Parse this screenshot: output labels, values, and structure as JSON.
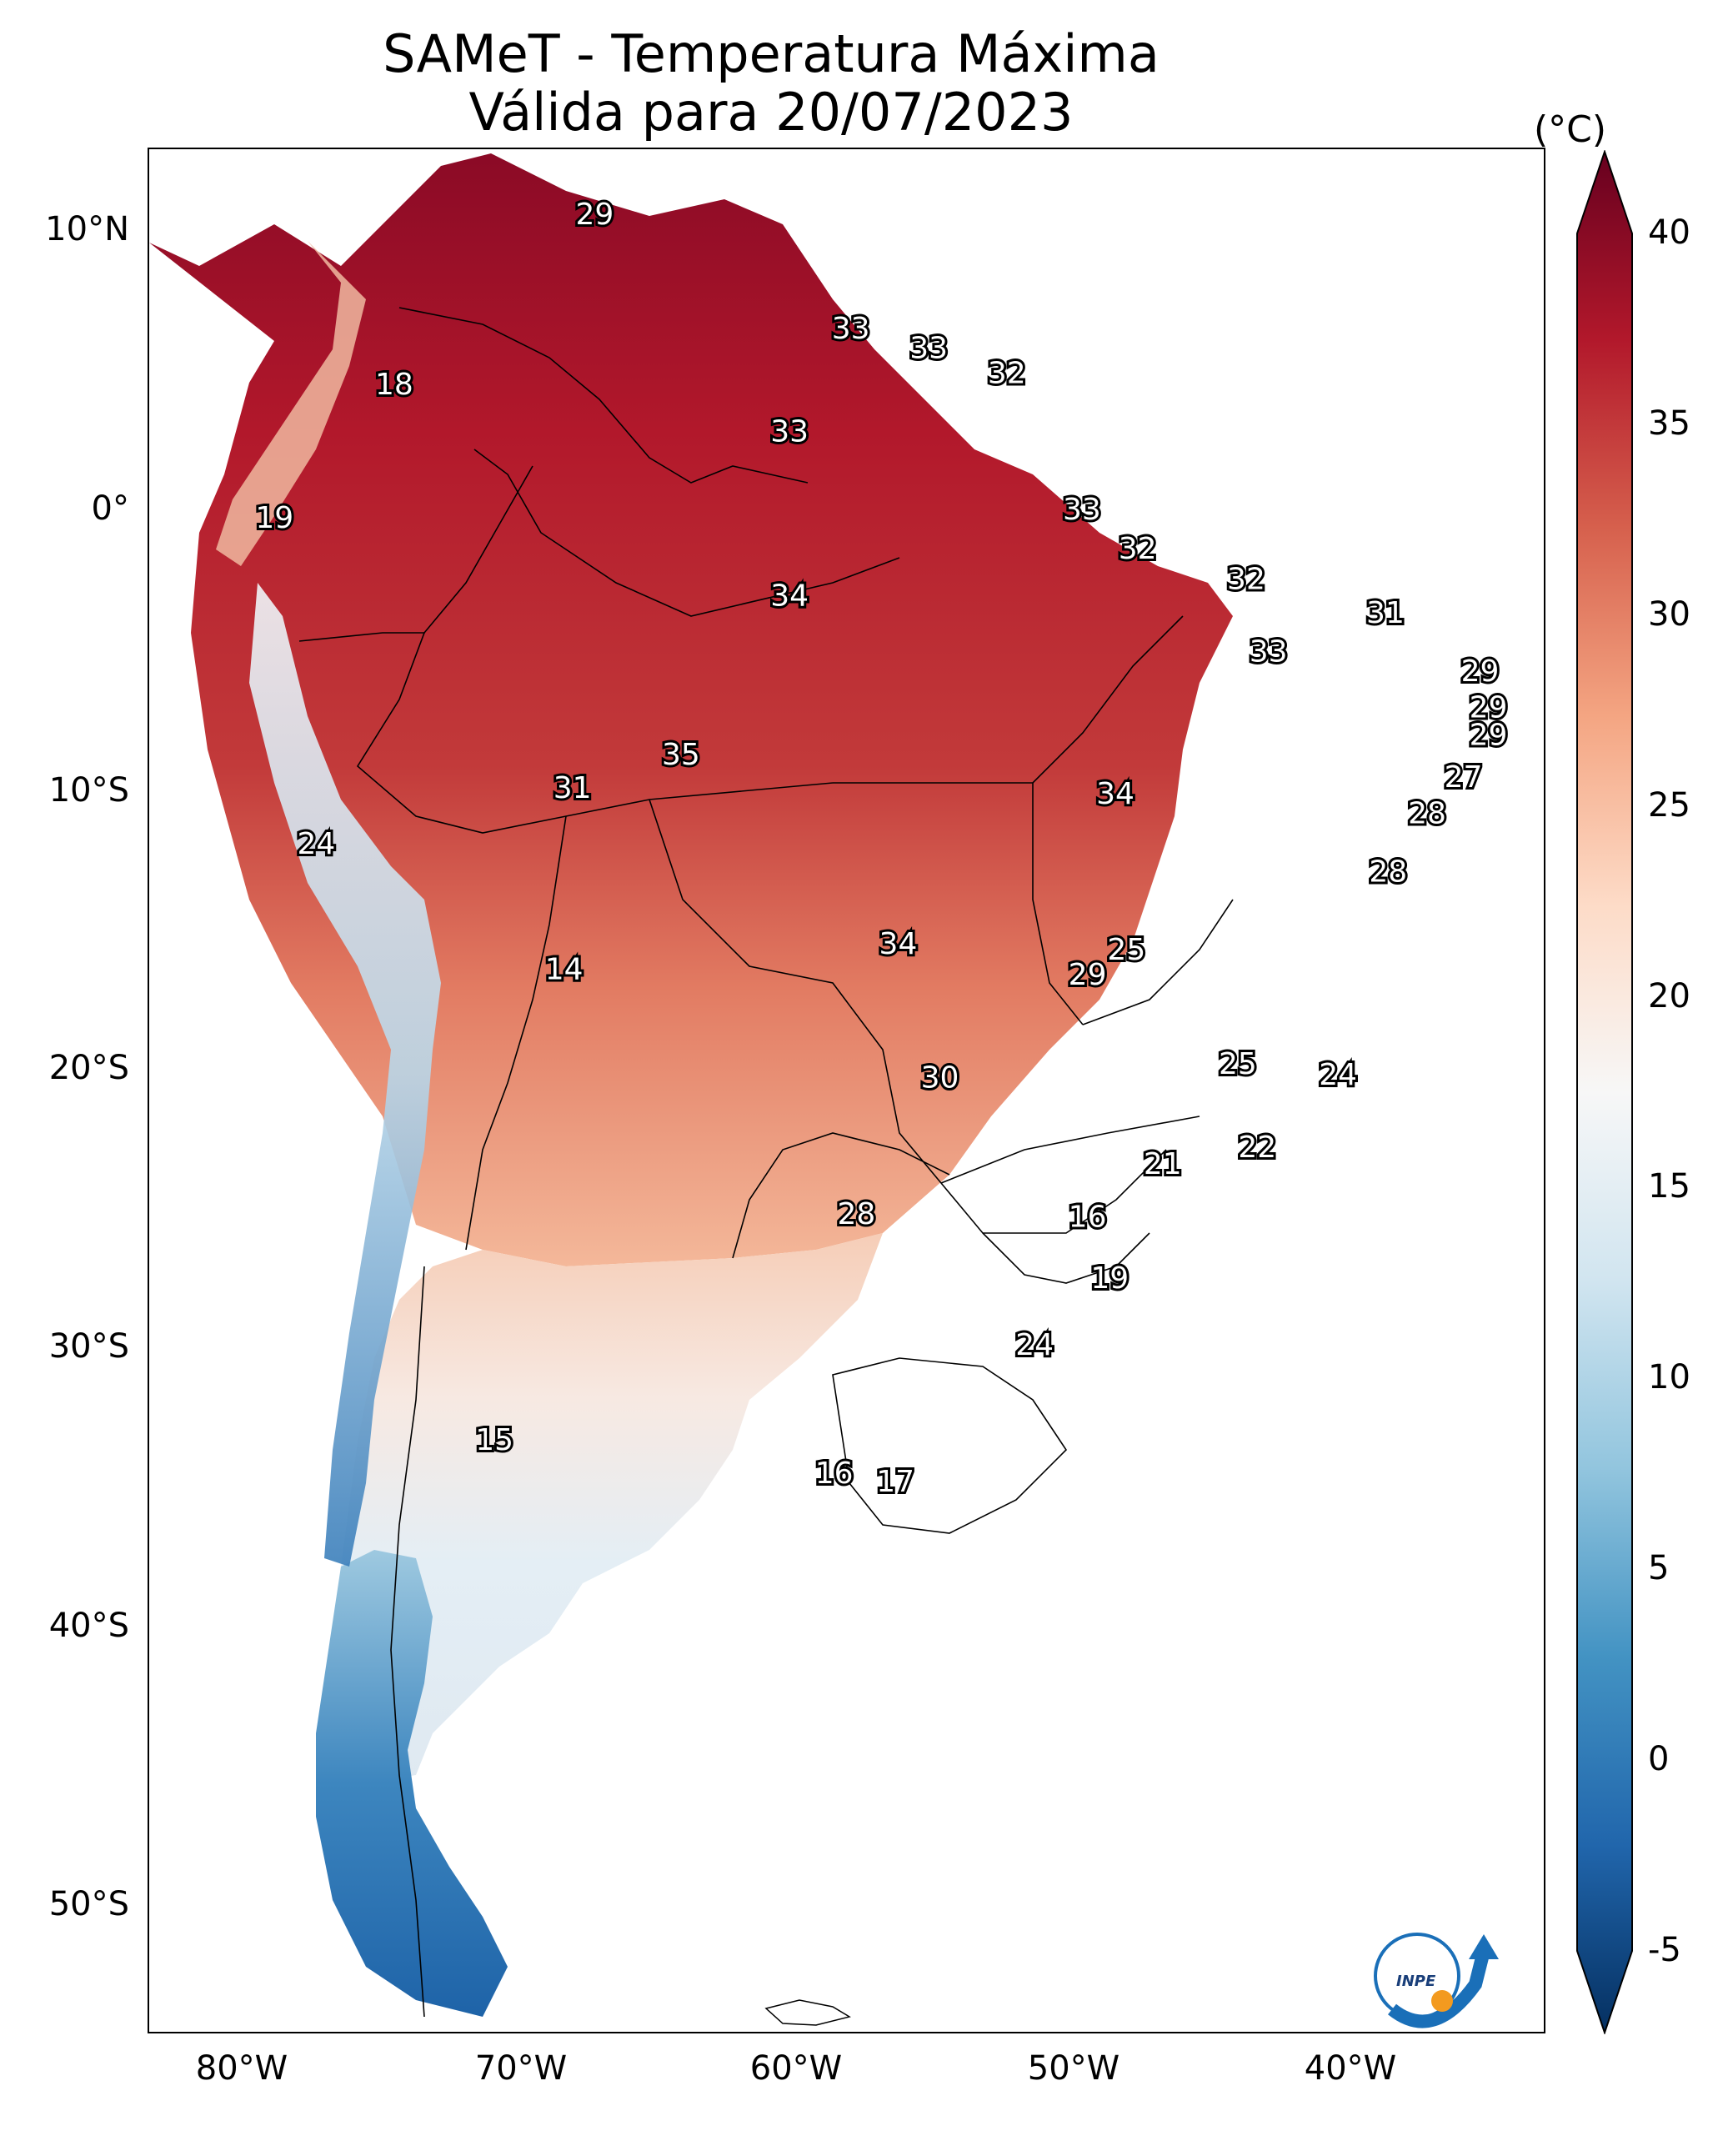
{
  "title": {
    "line1": "SAMeT - Temperatura Máxima",
    "line2": "Válida para 20/07/2023"
  },
  "axes": {
    "lat_labels": [
      "10°N",
      "0°",
      "10°S",
      "20°S",
      "30°S",
      "40°S",
      "50°S"
    ],
    "lon_labels": [
      "80°W",
      "70°W",
      "60°W",
      "50°W",
      "40°W"
    ]
  },
  "colorbar": {
    "unit": "(°C)",
    "ticks": [
      "40",
      "35",
      "30",
      "25",
      "20",
      "15",
      "10",
      "5",
      "0",
      "-5"
    ],
    "range": [
      -5,
      40
    ],
    "colors": [
      "#053061",
      "#2166ac",
      "#4393c3",
      "#92c5de",
      "#d1e5f0",
      "#f7f7f7",
      "#fddbc7",
      "#f4a582",
      "#d6604d",
      "#b2182b",
      "#67001f"
    ]
  },
  "station_values": [
    {
      "v": "29",
      "lon": -67.0,
      "lat": 10.6
    },
    {
      "v": "33",
      "lon": -57.8,
      "lat": 6.5
    },
    {
      "v": "33",
      "lon": -55.0,
      "lat": 5.8
    },
    {
      "v": "32",
      "lon": -52.2,
      "lat": 4.9
    },
    {
      "v": "18",
      "lon": -74.2,
      "lat": 4.5
    },
    {
      "v": "33",
      "lon": -60.0,
      "lat": 2.8
    },
    {
      "v": "33",
      "lon": -49.5,
      "lat": 0.0
    },
    {
      "v": "19",
      "lon": -78.5,
      "lat": -0.3
    },
    {
      "v": "32",
      "lon": -47.5,
      "lat": -1.4
    },
    {
      "v": "32",
      "lon": -43.6,
      "lat": -2.5
    },
    {
      "v": "34",
      "lon": -60.0,
      "lat": -3.1
    },
    {
      "v": "31",
      "lon": -38.6,
      "lat": -3.7
    },
    {
      "v": "33",
      "lon": -42.8,
      "lat": -5.1
    },
    {
      "v": "29",
      "lon": -35.2,
      "lat": -5.8
    },
    {
      "v": "29",
      "lon": -34.9,
      "lat": -7.1
    },
    {
      "v": "29",
      "lon": -34.9,
      "lat": -8.1
    },
    {
      "v": "35",
      "lon": -63.9,
      "lat": -8.8
    },
    {
      "v": "27",
      "lon": -35.8,
      "lat": -9.6
    },
    {
      "v": "31",
      "lon": -67.8,
      "lat": -10.0
    },
    {
      "v": "34",
      "lon": -48.3,
      "lat": -10.2
    },
    {
      "v": "28",
      "lon": -37.1,
      "lat": -10.9
    },
    {
      "v": "24",
      "lon": -77.0,
      "lat": -12.0
    },
    {
      "v": "28",
      "lon": -38.5,
      "lat": -13.0
    },
    {
      "v": "34",
      "lon": -56.1,
      "lat": -15.6
    },
    {
      "v": "25",
      "lon": -47.9,
      "lat": -15.8
    },
    {
      "v": "29",
      "lon": -49.3,
      "lat": -16.7
    },
    {
      "v": "14",
      "lon": -68.1,
      "lat": -16.5
    },
    {
      "v": "25",
      "lon": -43.9,
      "lat": -19.9
    },
    {
      "v": "24",
      "lon": -40.3,
      "lat": -20.3
    },
    {
      "v": "30",
      "lon": -54.6,
      "lat": -20.4
    },
    {
      "v": "22",
      "lon": -43.2,
      "lat": -22.9
    },
    {
      "v": "21",
      "lon": -46.6,
      "lat": -23.5
    },
    {
      "v": "28",
      "lon": -57.6,
      "lat": -25.3
    },
    {
      "v": "16",
      "lon": -49.3,
      "lat": -25.4
    },
    {
      "v": "19",
      "lon": -48.5,
      "lat": -27.6
    },
    {
      "v": "24",
      "lon": -51.2,
      "lat": -30.0
    },
    {
      "v": "15",
      "lon": -70.6,
      "lat": -33.4
    },
    {
      "v": "16",
      "lon": -58.4,
      "lat": -34.6
    },
    {
      "v": "17",
      "lon": -56.2,
      "lat": -34.9
    }
  ],
  "logo": {
    "text": "INPE"
  }
}
